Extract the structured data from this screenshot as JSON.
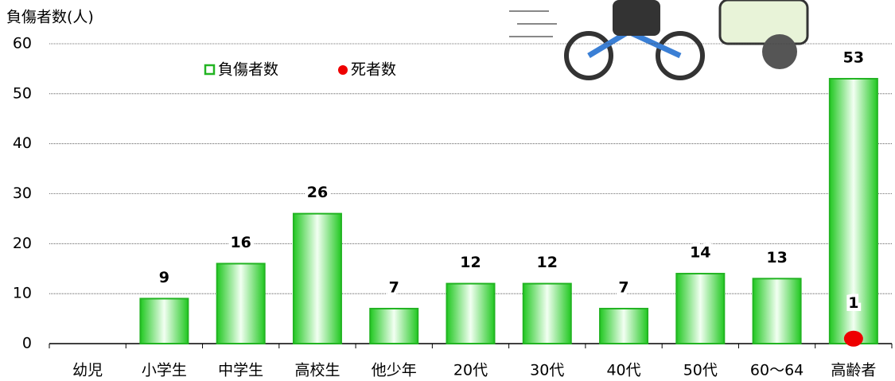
{
  "chart_data": {
    "type": "bar",
    "y_axis_label": "負傷者数(人)",
    "categories": [
      "幼児",
      "小学生",
      "中学生",
      "高校生",
      "他少年",
      "20代",
      "30代",
      "40代",
      "50代",
      "60〜64",
      "高齢者"
    ],
    "series": [
      {
        "name": "負傷者数",
        "color": "#22b422",
        "values": [
          null,
          9,
          16,
          26,
          7,
          12,
          12,
          7,
          14,
          13,
          53
        ]
      },
      {
        "name": "死者数",
        "color": "#ee0000",
        "values": [
          null,
          null,
          null,
          null,
          null,
          null,
          null,
          null,
          null,
          null,
          1
        ]
      }
    ],
    "ylim": [
      0,
      60
    ],
    "yticks": [
      0,
      10,
      20,
      30,
      40,
      50,
      60
    ],
    "grid": true
  }
}
